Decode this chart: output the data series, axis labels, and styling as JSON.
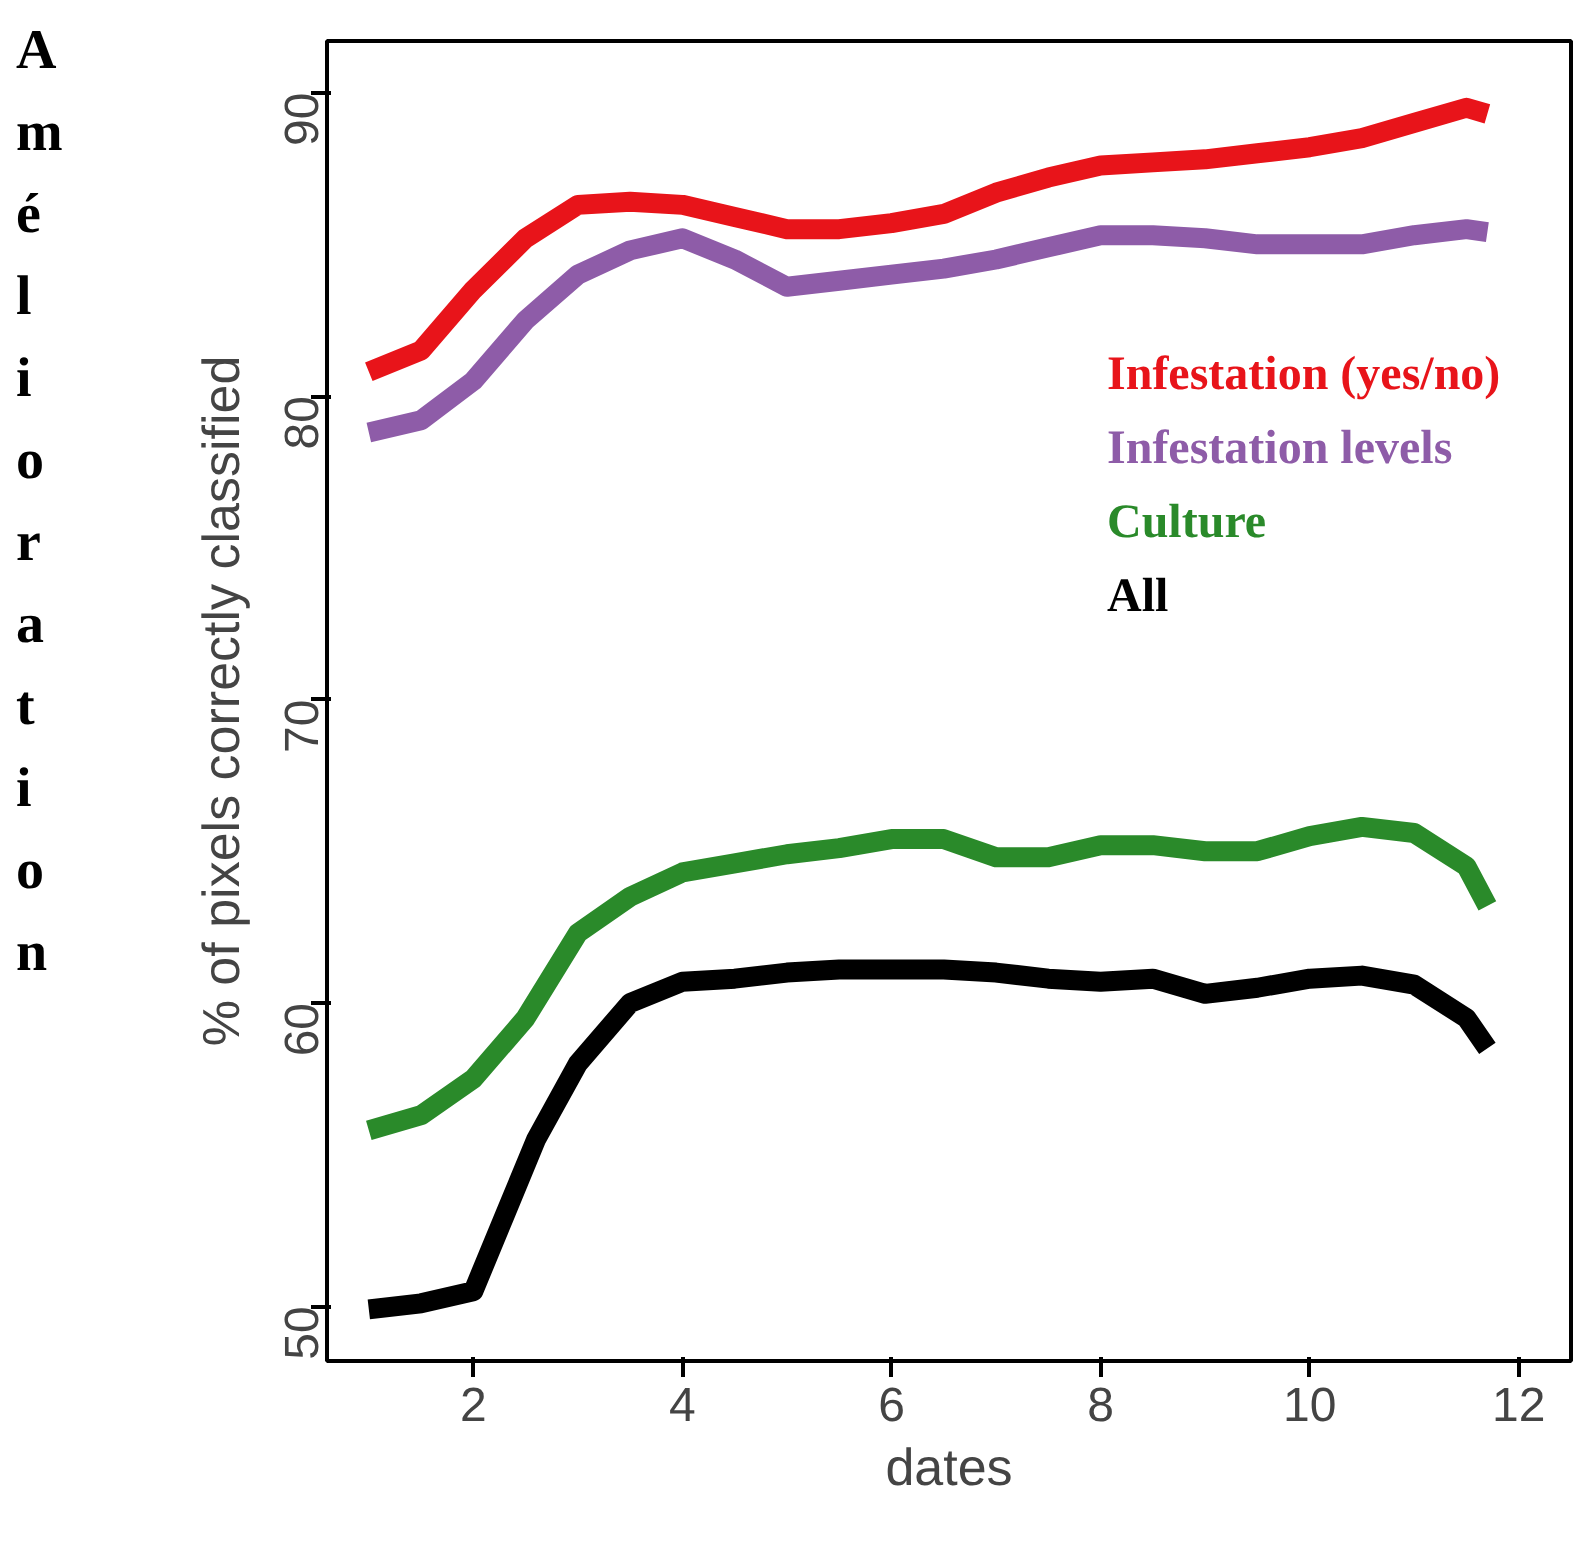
{
  "chart_data": {
    "type": "line",
    "xlabel": "dates",
    "ylabel": "% of pixels correctly classified",
    "annotations": [
      "Amélioration"
    ],
    "xlim": [
      0.6,
      12.5
    ],
    "ylim": [
      48.2,
      91.7
    ],
    "xticks": [
      2,
      4,
      6,
      8,
      10,
      12
    ],
    "yticks": [
      50,
      60,
      70,
      80,
      90
    ],
    "grid": false,
    "legend": "right",
    "line_style": "solid",
    "marker": "none",
    "series": [
      {
        "name": "Infestation (yes/no)",
        "color": "#e8141a",
        "x": [
          1,
          1.5,
          2,
          2.5,
          3,
          3.5,
          4,
          4.5,
          5,
          5.5,
          6,
          6.5,
          7,
          7.5,
          8,
          8.5,
          9,
          9.5,
          10,
          10.5,
          11,
          11.5,
          11.7
        ],
        "values": [
          80.8,
          81.5,
          83.5,
          85.2,
          86.3,
          86.4,
          86.3,
          85.9,
          85.5,
          85.5,
          85.7,
          86,
          86.7,
          87.2,
          87.6,
          87.7,
          87.8,
          88,
          88.2,
          88.5,
          89,
          89.5,
          89.3
        ]
      },
      {
        "name": "Infestation levels",
        "color": "#8e5ca8",
        "x": [
          1,
          1.5,
          2,
          2.5,
          3,
          3.5,
          4,
          4.5,
          5,
          5.5,
          6,
          6.5,
          7,
          7.5,
          8,
          8.5,
          9,
          9.5,
          10,
          10.5,
          11,
          11.5,
          11.7
        ],
        "values": [
          78.8,
          79.2,
          80.5,
          82.5,
          84,
          84.8,
          85.2,
          84.5,
          83.6,
          83.8,
          84,
          84.2,
          84.5,
          84.9,
          85.3,
          85.3,
          85.2,
          85,
          85,
          85,
          85.3,
          85.5,
          85.4
        ]
      },
      {
        "name": "Culture",
        "color": "#2a8a2a",
        "x": [
          1,
          1.5,
          2,
          2.5,
          3,
          3.5,
          4,
          4.5,
          5,
          5.5,
          6,
          6.5,
          7,
          7.5,
          8,
          8.5,
          9,
          9.5,
          10,
          10.5,
          11,
          11.5,
          11.7
        ],
        "values": [
          55.8,
          56.3,
          57.5,
          59.5,
          62.3,
          63.5,
          64.3,
          64.6,
          64.9,
          65.1,
          65.4,
          65.4,
          64.8,
          64.8,
          65.2,
          65.2,
          65,
          65,
          65.5,
          65.8,
          65.6,
          64.5,
          63.2
        ]
      },
      {
        "name": "All",
        "color": "#000000",
        "x": [
          1,
          1.5,
          2,
          2.3,
          2.6,
          3,
          3.5,
          4,
          4.5,
          5,
          5.5,
          6,
          6.5,
          7,
          7.5,
          8,
          8.5,
          9,
          9.5,
          10,
          10.5,
          11,
          11.5,
          11.7
        ],
        "values": [
          49.9,
          50.1,
          50.5,
          53,
          55.5,
          58,
          60,
          60.7,
          60.8,
          61,
          61.1,
          61.1,
          61.1,
          61,
          60.8,
          60.7,
          60.8,
          60.3,
          60.5,
          60.8,
          60.9,
          60.6,
          59.5,
          58.5
        ]
      }
    ]
  }
}
